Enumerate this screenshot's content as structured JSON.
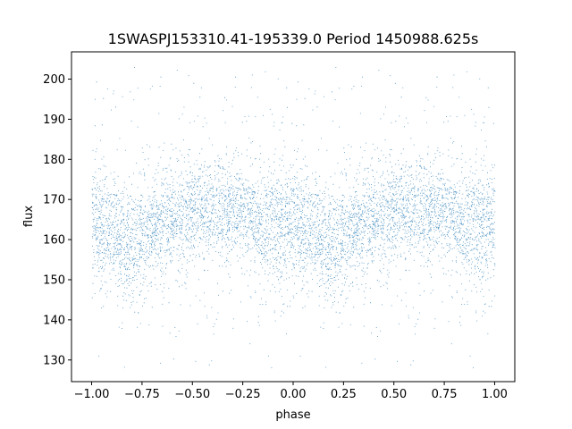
{
  "chart_data": {
    "type": "scatter",
    "title": "1SWASPJ153310.41-195339.0 Period 1450988.625s",
    "xlabel": "phase",
    "ylabel": "flux",
    "xlim": [
      -1.1,
      1.1
    ],
    "ylim": [
      124.6,
      206.8
    ],
    "xticks": [
      -1.0,
      -0.75,
      -0.5,
      -0.25,
      0.0,
      0.25,
      0.5,
      0.75,
      1.0
    ],
    "xtick_labels": [
      "−1.00",
      "−0.75",
      "−0.50",
      "−0.25",
      "0.00",
      "0.25",
      "0.50",
      "0.75",
      "1.00"
    ],
    "yticks": [
      130,
      140,
      150,
      160,
      170,
      180,
      190,
      200
    ],
    "ytick_labels": [
      "130",
      "140",
      "150",
      "160",
      "170",
      "180",
      "190",
      "200"
    ],
    "grid": false,
    "marker_color": "#1f77b4",
    "phase_range": [
      -1.0,
      1.0
    ],
    "profile": {
      "phase": [
        0.0,
        0.05,
        0.1,
        0.15,
        0.2,
        0.25,
        0.3,
        0.35,
        0.4,
        0.45,
        0.5,
        0.55,
        0.6,
        0.65,
        0.7,
        0.75,
        0.8,
        0.85,
        0.9,
        0.95,
        1.0
      ],
      "median_flux": [
        164,
        163,
        162,
        160,
        158,
        161,
        163,
        164,
        165,
        166,
        167,
        168,
        168,
        168,
        167,
        167,
        165,
        163,
        164,
        163,
        164
      ],
      "spread_flux": [
        6,
        6,
        6,
        6,
        7,
        6,
        6,
        6,
        6,
        6,
        6,
        6,
        6,
        6,
        6,
        6,
        6,
        6,
        7,
        7,
        6
      ]
    },
    "outlier_flux_range": [
      128,
      203
    ]
  }
}
